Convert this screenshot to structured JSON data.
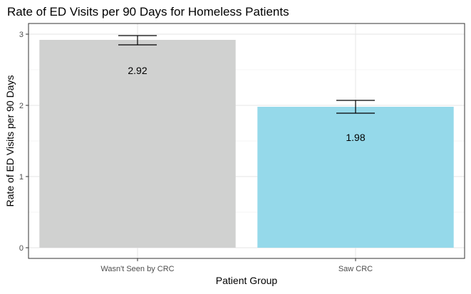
{
  "chart_data": {
    "type": "bar",
    "title": "Rate of ED Visits per 90 Days for Homeless Patients",
    "xlabel": "Patient Group",
    "ylabel": "Rate of ED Visits per 90 Days",
    "categories": [
      "Wasn't Seen by CRC",
      "Saw CRC"
    ],
    "values": [
      2.92,
      1.98
    ],
    "value_labels": [
      "2.92",
      "1.98"
    ],
    "error_bars": [
      {
        "low": 2.85,
        "high": 2.98
      },
      {
        "low": 1.89,
        "high": 2.07
      }
    ],
    "colors": [
      "#d0d1d0",
      "#95d9ea"
    ],
    "ylim": [
      -0.15,
      3.15
    ],
    "yticks": [
      0,
      1,
      2,
      3
    ],
    "ytick_labels": [
      "0",
      "1",
      "2",
      "3"
    ],
    "grid": true,
    "legend": "none"
  }
}
